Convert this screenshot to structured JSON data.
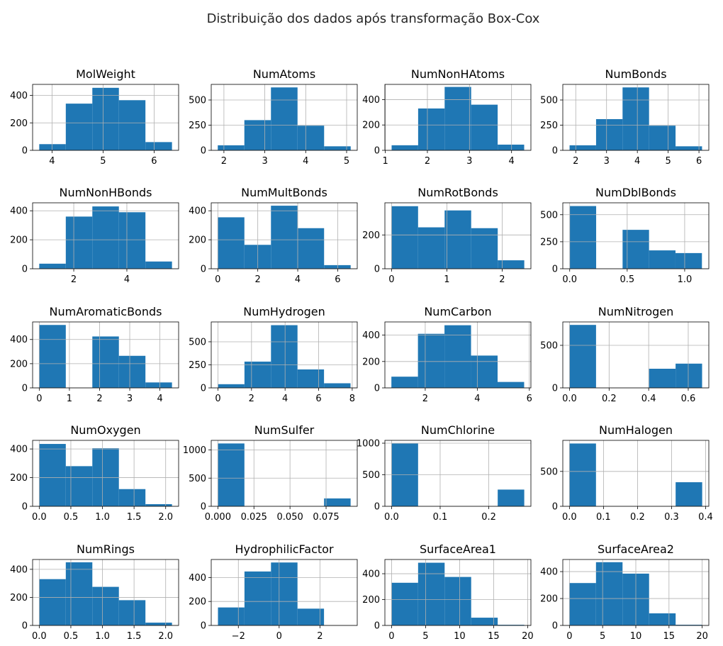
{
  "suptitle": "Distribuição dos dados após transformação Box-Cox",
  "colors": {
    "bar": "#1f77b4",
    "grid": "#b0b0b0",
    "axis": "#000000"
  },
  "chart_data": [
    {
      "type": "bar",
      "title": "MolWeight",
      "edges": [
        3.75,
        4.27,
        4.79,
        5.31,
        5.83,
        6.35
      ],
      "values": [
        45,
        340,
        455,
        365,
        60
      ],
      "xlim": [
        3.62,
        6.48
      ],
      "ylim": [
        0,
        480
      ],
      "xticks": [
        4,
        5,
        6
      ],
      "xtick_labels": [
        "4",
        "5",
        "6"
      ],
      "yticks": [
        0,
        200,
        400
      ],
      "ytick_labels": [
        "0",
        "200",
        "400"
      ]
    },
    {
      "type": "bar",
      "title": "NumAtoms",
      "edges": [
        1.85,
        2.5,
        3.15,
        3.8,
        4.45,
        5.1
      ],
      "values": [
        50,
        300,
        625,
        245,
        40
      ],
      "xlim": [
        1.69,
        5.26
      ],
      "ylim": [
        0,
        655
      ],
      "xticks": [
        2,
        3,
        4,
        5
      ],
      "xtick_labels": [
        "2",
        "3",
        "4",
        "5"
      ],
      "yticks": [
        0,
        250,
        500
      ],
      "ytick_labels": [
        "0",
        "250",
        "500"
      ]
    },
    {
      "type": "bar",
      "title": "NumNonHAtoms",
      "edges": [
        1.15,
        1.78,
        2.41,
        3.04,
        3.67,
        4.3
      ],
      "values": [
        40,
        330,
        500,
        360,
        45
      ],
      "xlim": [
        0.99,
        4.46
      ],
      "ylim": [
        0,
        520
      ],
      "xticks": [
        1,
        2,
        3,
        4
      ],
      "xtick_labels": [
        "1",
        "2",
        "3",
        "4"
      ],
      "yticks": [
        0,
        200,
        400
      ],
      "ytick_labels": [
        "0",
        "200",
        "400"
      ]
    },
    {
      "type": "bar",
      "title": "NumBonds",
      "edges": [
        1.8,
        2.66,
        3.52,
        4.38,
        5.24,
        6.1
      ],
      "values": [
        50,
        310,
        625,
        245,
        40
      ],
      "xlim": [
        1.58,
        6.32
      ],
      "ylim": [
        0,
        655
      ],
      "xticks": [
        2,
        3,
        4,
        5,
        6
      ],
      "xtick_labels": [
        "2",
        "3",
        "4",
        "5",
        "6"
      ],
      "yticks": [
        0,
        250,
        500
      ],
      "ytick_labels": [
        "0",
        "250",
        "500"
      ]
    },
    {
      "type": "bar",
      "title": "NumNonHBonds",
      "edges": [
        0.7,
        1.7,
        2.7,
        3.7,
        4.7,
        5.7
      ],
      "values": [
        35,
        360,
        430,
        390,
        50
      ],
      "xlim": [
        0.45,
        5.95
      ],
      "ylim": [
        0,
        455
      ],
      "xticks": [
        2,
        4
      ],
      "xtick_labels": [
        "2",
        "4"
      ],
      "yticks": [
        0,
        200,
        400
      ],
      "ytick_labels": [
        "0",
        "200",
        "400"
      ]
    },
    {
      "type": "bar",
      "title": "NumMultBonds",
      "edges": [
        0,
        1.33,
        2.66,
        3.99,
        5.32,
        6.65
      ],
      "values": [
        355,
        165,
        435,
        280,
        25
      ],
      "xlim": [
        -0.33,
        6.98
      ],
      "ylim": [
        0,
        455
      ],
      "xticks": [
        0,
        2,
        4,
        6
      ],
      "xtick_labels": [
        "0",
        "2",
        "4",
        "6"
      ],
      "yticks": [
        0,
        200,
        400
      ],
      "ytick_labels": [
        "0",
        "200",
        "400"
      ]
    },
    {
      "type": "bar",
      "title": "NumRotBonds",
      "edges": [
        0,
        0.48,
        0.96,
        1.44,
        1.92,
        2.4
      ],
      "values": [
        370,
        245,
        345,
        240,
        50
      ],
      "xlim": [
        -0.12,
        2.52
      ],
      "ylim": [
        0,
        390
      ],
      "xticks": [
        0,
        1,
        2
      ],
      "xtick_labels": [
        "0",
        "1",
        "2"
      ],
      "yticks": [
        0,
        200
      ],
      "ytick_labels": [
        "0",
        "200"
      ]
    },
    {
      "type": "bar",
      "title": "NumDblBonds",
      "edges": [
        0,
        0.23,
        0.46,
        0.69,
        0.92,
        1.15
      ],
      "values": [
        580,
        0,
        360,
        170,
        145
      ],
      "xlim": [
        -0.06,
        1.21
      ],
      "ylim": [
        0,
        610
      ],
      "xticks": [
        0.0,
        0.5,
        1.0
      ],
      "xtick_labels": [
        "0.0",
        "0.5",
        "1.0"
      ],
      "yticks": [
        0,
        250,
        500
      ],
      "ytick_labels": [
        "0",
        "250",
        "500"
      ]
    },
    {
      "type": "bar",
      "title": "NumAromaticBonds",
      "edges": [
        0,
        0.88,
        1.76,
        2.64,
        3.52,
        4.4
      ],
      "values": [
        520,
        0,
        425,
        265,
        45
      ],
      "xlim": [
        -0.22,
        4.62
      ],
      "ylim": [
        0,
        545
      ],
      "xticks": [
        0,
        1,
        2,
        3,
        4
      ],
      "xtick_labels": [
        "0",
        "1",
        "2",
        "3",
        "4"
      ],
      "yticks": [
        0,
        200,
        400
      ],
      "ytick_labels": [
        "0",
        "200",
        "400"
      ]
    },
    {
      "type": "bar",
      "title": "NumHydrogen",
      "edges": [
        0,
        1.58,
        3.16,
        4.74,
        6.32,
        7.9
      ],
      "values": [
        40,
        285,
        680,
        200,
        50
      ],
      "xlim": [
        -0.4,
        8.3
      ],
      "ylim": [
        0,
        715
      ],
      "xticks": [
        0,
        2,
        4,
        6,
        8
      ],
      "xtick_labels": [
        "0",
        "2",
        "4",
        "6",
        "8"
      ],
      "yticks": [
        0,
        250,
        500
      ],
      "ytick_labels": [
        "0",
        "250",
        "500"
      ]
    },
    {
      "type": "bar",
      "title": "NumCarbon",
      "edges": [
        0.7,
        1.72,
        2.74,
        3.76,
        4.78,
        5.8
      ],
      "values": [
        85,
        410,
        475,
        245,
        45
      ],
      "xlim": [
        0.45,
        6.06
      ],
      "ylim": [
        0,
        500
      ],
      "xticks": [
        2,
        4,
        6
      ],
      "xtick_labels": [
        "2",
        "4",
        "6"
      ],
      "yticks": [
        0,
        200,
        400
      ],
      "ytick_labels": [
        "0",
        "200",
        "400"
      ]
    },
    {
      "type": "bar",
      "title": "NumNitrogen",
      "edges": [
        0,
        0.134,
        0.268,
        0.402,
        0.536,
        0.67
      ],
      "values": [
        740,
        0,
        0,
        225,
        285
      ],
      "xlim": [
        -0.034,
        0.704
      ],
      "ylim": [
        0,
        775
      ],
      "xticks": [
        0.0,
        0.2,
        0.4,
        0.6
      ],
      "xtick_labels": [
        "0.0",
        "0.2",
        "0.4",
        "0.6"
      ],
      "yticks": [
        0,
        500
      ],
      "ytick_labels": [
        "0",
        "500"
      ]
    },
    {
      "type": "bar",
      "title": "NumOxygen",
      "edges": [
        0,
        0.42,
        0.84,
        1.26,
        1.68,
        2.1
      ],
      "values": [
        435,
        280,
        405,
        120,
        15
      ],
      "xlim": [
        -0.105,
        2.205
      ],
      "ylim": [
        0,
        460
      ],
      "xticks": [
        0.0,
        0.5,
        1.0,
        1.5,
        2.0
      ],
      "xtick_labels": [
        "0.0",
        "0.5",
        "1.0",
        "1.5",
        "2.0"
      ],
      "yticks": [
        0,
        200,
        400
      ],
      "ytick_labels": [
        "0",
        "200",
        "400"
      ]
    },
    {
      "type": "bar",
      "title": "NumSulfer",
      "edges": [
        0,
        0.0184,
        0.0368,
        0.0552,
        0.0736,
        0.092
      ],
      "values": [
        1115,
        0,
        0,
        0,
        140
      ],
      "xlim": [
        -0.0046,
        0.0966
      ],
      "ylim": [
        0,
        1170
      ],
      "xticks": [
        0.0,
        0.025,
        0.05,
        0.075
      ],
      "xtick_labels": [
        "0.000",
        "0.025",
        "0.050",
        "0.075"
      ],
      "yticks": [
        0,
        500,
        1000
      ],
      "ytick_labels": [
        "0",
        "500",
        "1000"
      ]
    },
    {
      "type": "bar",
      "title": "NumChlorine",
      "edges": [
        0,
        0.0546,
        0.1092,
        0.1638,
        0.2184,
        0.273
      ],
      "values": [
        995,
        0,
        0,
        0,
        265
      ],
      "xlim": [
        -0.0137,
        0.2867
      ],
      "ylim": [
        0,
        1045
      ],
      "xticks": [
        0.0,
        0.1,
        0.2
      ],
      "xtick_labels": [
        "0.0",
        "0.1",
        "0.2"
      ],
      "yticks": [
        0,
        500,
        1000
      ],
      "ytick_labels": [
        "0",
        "500",
        "1000"
      ]
    },
    {
      "type": "bar",
      "title": "NumHalogen",
      "edges": [
        0,
        0.078,
        0.156,
        0.234,
        0.312,
        0.39
      ],
      "values": [
        900,
        0,
        0,
        0,
        345
      ],
      "xlim": [
        -0.0195,
        0.4095
      ],
      "ylim": [
        0,
        945
      ],
      "xticks": [
        0.0,
        0.1,
        0.2,
        0.3,
        0.4
      ],
      "xtick_labels": [
        "0.0",
        "0.1",
        "0.2",
        "0.3",
        "0.4"
      ],
      "yticks": [
        0,
        500
      ],
      "ytick_labels": [
        "0",
        "500"
      ]
    },
    {
      "type": "bar",
      "title": "NumRings",
      "edges": [
        0,
        0.42,
        0.84,
        1.26,
        1.68,
        2.1
      ],
      "values": [
        330,
        450,
        275,
        180,
        20
      ],
      "xlim": [
        -0.105,
        2.205
      ],
      "ylim": [
        0,
        470
      ],
      "xticks": [
        0.0,
        0.5,
        1.0,
        1.5,
        2.0
      ],
      "xtick_labels": [
        "0.0",
        "0.5",
        "1.0",
        "1.5",
        "2.0"
      ],
      "yticks": [
        0,
        200,
        400
      ],
      "ytick_labels": [
        "0",
        "200",
        "400"
      ]
    },
    {
      "type": "bar",
      "title": "HydrophilicFactor",
      "edges": [
        -3.0,
        -1.7,
        -0.4,
        0.9,
        2.2,
        3.5
      ],
      "values": [
        150,
        450,
        525,
        140,
        0
      ],
      "xlim": [
        -3.33,
        3.83
      ],
      "ylim": [
        0,
        550
      ],
      "xticks": [
        -2,
        0,
        2
      ],
      "xtick_labels": [
        "−2",
        "0",
        "2"
      ],
      "yticks": [
        0,
        200,
        400
      ],
      "ytick_labels": [
        "0",
        "200",
        "400"
      ]
    },
    {
      "type": "bar",
      "title": "SurfaceArea1",
      "edges": [
        0,
        3.9,
        7.8,
        11.7,
        15.6,
        19.5
      ],
      "values": [
        330,
        485,
        375,
        60,
        5
      ],
      "xlim": [
        -0.98,
        20.48
      ],
      "ylim": [
        0,
        510
      ],
      "xticks": [
        0,
        5,
        10,
        15,
        20
      ],
      "xtick_labels": [
        "0",
        "5",
        "10",
        "15",
        "20"
      ],
      "yticks": [
        0,
        200,
        400
      ],
      "ytick_labels": [
        "0",
        "200",
        "400"
      ]
    },
    {
      "type": "bar",
      "title": "SurfaceArea2",
      "edges": [
        0,
        4.0,
        8.0,
        12.0,
        16.0,
        20.0
      ],
      "values": [
        315,
        470,
        385,
        90,
        5
      ],
      "xlim": [
        -1.0,
        21.0
      ],
      "ylim": [
        0,
        490
      ],
      "xticks": [
        0,
        5,
        10,
        15,
        20
      ],
      "xtick_labels": [
        "0",
        "5",
        "10",
        "15",
        "20"
      ],
      "yticks": [
        0,
        200,
        400
      ],
      "ytick_labels": [
        "0",
        "200",
        "400"
      ]
    }
  ]
}
